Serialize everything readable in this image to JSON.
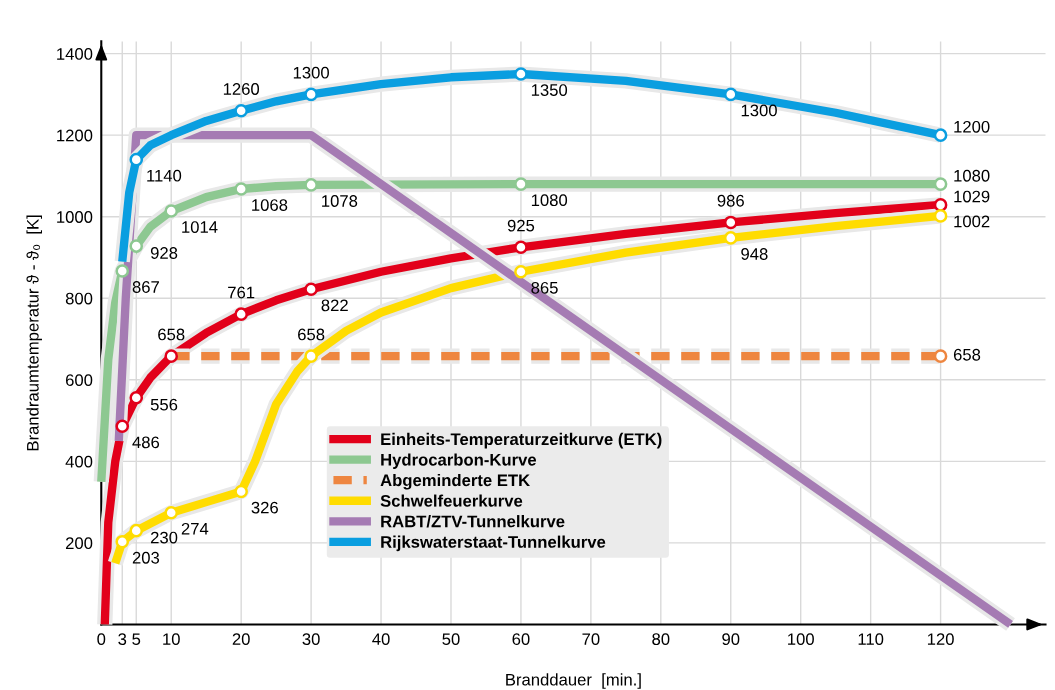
{
  "chart_data": {
    "type": "line",
    "xlabel": "Branddauer  [min.]",
    "ylabel": "Brandraumtemperatur ϑ - ϑ₀  [K]",
    "xlim": [
      0,
      135
    ],
    "ylim": [
      0,
      1430
    ],
    "xticks": [
      0,
      3,
      5,
      10,
      20,
      30,
      40,
      50,
      60,
      70,
      80,
      90,
      100,
      110,
      120
    ],
    "yticks": [
      200,
      400,
      600,
      800,
      1000,
      1200,
      1400
    ],
    "grid": true,
    "legend": "lower center",
    "series": [
      {
        "name": "Einheits-Temperaturzeitkurve (ETK)",
        "color": "#e2001a",
        "x": [
          0.5,
          1,
          2,
          3,
          5,
          7,
          10,
          15,
          20,
          25,
          30,
          40,
          50,
          60,
          75,
          90,
          105,
          120
        ],
        "values": [
          0,
          250,
          400,
          486,
          556,
          605,
          658,
          715,
          761,
          795,
          822,
          865,
          898,
          925,
          958,
          986,
          1009,
          1029
        ],
        "value_labels": [
          null,
          null,
          null,
          "486",
          "556",
          null,
          "658",
          null,
          "761",
          null,
          "822",
          null,
          null,
          "925",
          null,
          "986",
          null,
          "1029"
        ]
      },
      {
        "name": "Hydrocarbon-Kurve",
        "color": "#8dc891",
        "x": [
          0,
          1,
          2,
          3,
          5,
          7,
          10,
          15,
          20,
          25,
          30,
          60,
          120
        ],
        "values": [
          350,
          650,
          790,
          867,
          928,
          975,
          1014,
          1048,
          1068,
          1075,
          1078,
          1080,
          1080
        ],
        "value_labels": [
          null,
          null,
          null,
          "867",
          "928",
          null,
          "1014",
          null,
          "1068",
          null,
          "1078",
          "1080",
          "1080"
        ]
      },
      {
        "name": "Abgeminderte ETK",
        "color": "#ee8640",
        "line_style": "dashed",
        "x": [
          10,
          120
        ],
        "values": [
          658,
          658
        ],
        "value_labels": [
          null,
          "658"
        ]
      },
      {
        "name": "Schwelfeuerkurve",
        "color": "#ffdc00",
        "x": [
          2,
          3,
          5,
          10,
          15,
          20,
          22,
          25,
          28,
          30,
          35,
          40,
          50,
          60,
          75,
          90,
          105,
          120
        ],
        "values": [
          150,
          203,
          230,
          274,
          300,
          326,
          400,
          540,
          620,
          658,
          720,
          765,
          825,
          865,
          912,
          948,
          977,
          1002
        ],
        "value_labels": [
          null,
          "203",
          "230",
          "274",
          null,
          "326",
          null,
          null,
          null,
          "658",
          null,
          null,
          null,
          "865",
          null,
          "948",
          null,
          "1002"
        ]
      },
      {
        "name": "RABT/ZTV-Tunnelkurve",
        "color": "#a57bb3",
        "x": [
          2.5,
          3.5,
          5,
          30,
          130
        ],
        "values": [
          450,
          800,
          1200,
          1200,
          0
        ]
      },
      {
        "name": "Rijkswaterstaat-Tunnelkurve",
        "color": "#0a9ee0",
        "x": [
          3,
          4,
          5,
          7,
          10,
          15,
          20,
          25,
          30,
          40,
          50,
          60,
          75,
          90,
          105,
          120
        ],
        "values": [
          890,
          1060,
          1140,
          1175,
          1200,
          1235,
          1260,
          1283,
          1300,
          1325,
          1342,
          1350,
          1333,
          1300,
          1255,
          1200
        ],
        "value_labels": [
          null,
          null,
          "1140",
          null,
          null,
          null,
          "1260",
          null,
          "1300",
          null,
          null,
          "1350",
          null,
          "1300",
          null,
          "1200"
        ]
      }
    ]
  }
}
